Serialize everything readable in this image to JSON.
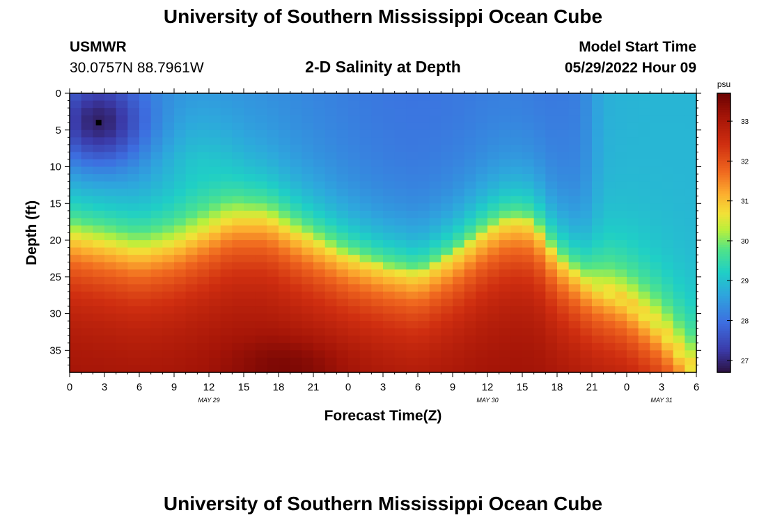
{
  "header": {
    "title": "University of Southern Mississippi Ocean Cube",
    "station_id": "USMWR",
    "coords": "30.0757N  88.7961W",
    "subtitle": "2-D Salinity at Depth",
    "model_label": "Model Start Time",
    "model_time": "05/29/2022 Hour 09"
  },
  "footer": {
    "title": "University of Southern Mississippi Ocean Cube"
  },
  "chart_data": {
    "type": "heatmap",
    "title": "2-D Salinity at Depth",
    "xlabel": "Forecast Time(Z)",
    "ylabel": "Depth (ft)",
    "xlim": [
      0,
      54
    ],
    "ylim": [
      38,
      0
    ],
    "x_ticks": [
      0,
      3,
      6,
      9,
      12,
      15,
      18,
      21,
      24,
      27,
      30,
      33,
      36,
      39,
      42,
      45,
      48,
      51,
      54
    ],
    "x_tick_labels": [
      "0",
      "3",
      "6",
      "9",
      "12",
      "15",
      "18",
      "21",
      "0",
      "3",
      "6",
      "9",
      "12",
      "15",
      "18",
      "21",
      "0",
      "3",
      "6"
    ],
    "y_ticks": [
      0,
      5,
      10,
      15,
      20,
      25,
      30,
      35
    ],
    "y_tick_labels": [
      "0",
      "5",
      "10",
      "15",
      "20",
      "25",
      "30",
      "35"
    ],
    "date_labels": [
      {
        "text": "MAY 29",
        "hour": 12
      },
      {
        "text": "MAY 30",
        "hour": 36
      },
      {
        "text": "MAY 31",
        "hour": 51
      }
    ],
    "marker": {
      "hour": 2.5,
      "depth": 4
    },
    "colorbar": {
      "unit": "psu",
      "min": 26.7,
      "max": 33.7,
      "ticks": [
        27,
        28,
        29,
        30,
        31,
        32,
        33
      ],
      "tick_labels": [
        "27",
        "28",
        "29",
        "30",
        "31",
        "32",
        "33"
      ]
    },
    "colorscale": [
      [
        0.0,
        "#2b1140"
      ],
      [
        0.08,
        "#3b3aa8"
      ],
      [
        0.18,
        "#3d6ee0"
      ],
      [
        0.28,
        "#2ea6dd"
      ],
      [
        0.36,
        "#1fcfc6"
      ],
      [
        0.44,
        "#4fe38a"
      ],
      [
        0.51,
        "#b8f03c"
      ],
      [
        0.57,
        "#f2e137"
      ],
      [
        0.64,
        "#fcae2f"
      ],
      [
        0.72,
        "#f0681f"
      ],
      [
        0.82,
        "#cf2e10"
      ],
      [
        0.92,
        "#a31407"
      ],
      [
        1.0,
        "#6b0303"
      ]
    ],
    "isohaline_depth_ft": [
      {
        "hour": 0,
        "depth": 19
      },
      {
        "hour": 3,
        "depth": 20
      },
      {
        "hour": 6,
        "depth": 21
      },
      {
        "hour": 9,
        "depth": 20
      },
      {
        "hour": 12,
        "depth": 18
      },
      {
        "hour": 14,
        "depth": 16.5
      },
      {
        "hour": 17,
        "depth": 16.5
      },
      {
        "hour": 20,
        "depth": 19
      },
      {
        "hour": 24,
        "depth": 22
      },
      {
        "hour": 27,
        "depth": 23.5
      },
      {
        "hour": 30,
        "depth": 24.5
      },
      {
        "hour": 33,
        "depth": 22
      },
      {
        "hour": 36,
        "depth": 18.5
      },
      {
        "hour": 38,
        "depth": 17
      },
      {
        "hour": 40,
        "depth": 17.5
      },
      {
        "hour": 42,
        "depth": 22
      },
      {
        "hour": 45,
        "depth": 26
      },
      {
        "hour": 48,
        "depth": 28
      },
      {
        "hour": 51,
        "depth": 32
      },
      {
        "hour": 54,
        "depth": 38
      }
    ],
    "salinity_range_psu": [
      26.7,
      33.7
    ]
  }
}
